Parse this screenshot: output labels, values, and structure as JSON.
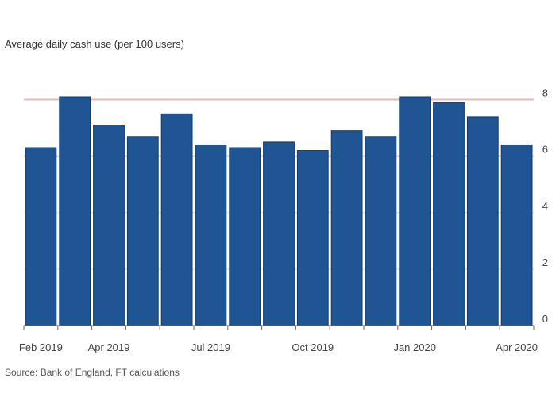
{
  "chart_data": {
    "type": "bar",
    "title": "Average daily cash use (per 100 users)",
    "categories": [
      "Feb 2019",
      "Mar 2019",
      "Apr 2019",
      "May 2019",
      "Jun 2019",
      "Jul 2019",
      "Aug 2019",
      "Sep 2019",
      "Oct 2019",
      "Nov 2019",
      "Dec 2019",
      "Jan 2020",
      "Feb 2020",
      "Mar 2020",
      "Apr 2020"
    ],
    "values": [
      6.3,
      8.1,
      7.1,
      6.7,
      7.5,
      6.4,
      6.3,
      6.5,
      6.2,
      6.9,
      6.7,
      8.1,
      7.9,
      7.4,
      6.4
    ],
    "ylim": [
      0,
      9
    ],
    "yticks": [
      0,
      2,
      4,
      6,
      8
    ],
    "ytick_labels": [
      "0",
      "2",
      "4",
      "6",
      "8"
    ],
    "xtick_labels": [
      {
        "index": 0,
        "label": "Feb 2019"
      },
      {
        "index": 2,
        "label": "Apr 2019"
      },
      {
        "index": 5,
        "label": "Jul 2019"
      },
      {
        "index": 8,
        "label": "Oct 2019"
      },
      {
        "index": 11,
        "label": "Jan 2020"
      },
      {
        "index": 14,
        "label": "Apr 2020"
      }
    ],
    "xlabel": "",
    "ylabel": "",
    "grid": true,
    "highlight_lines": [
      6,
      8
    ],
    "colors": {
      "bar": "#1f5592",
      "bar_edge": "#123a6b",
      "grid": "#d9d9d9",
      "highlight_grid": "#e6b8b8",
      "axis": "#666666"
    }
  },
  "source": "Source: Bank of England, FT calculations"
}
